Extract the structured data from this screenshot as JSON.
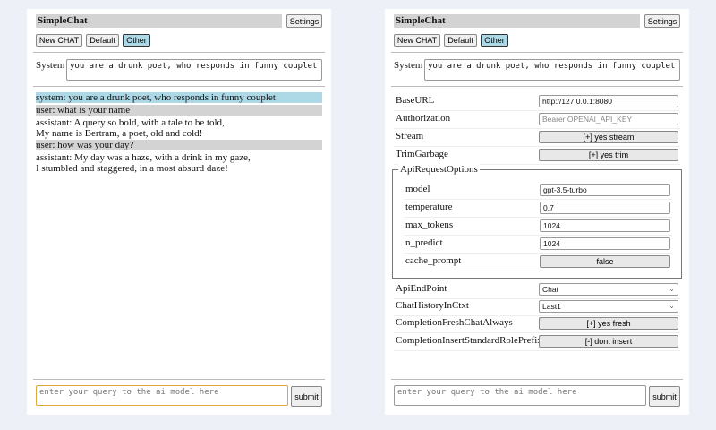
{
  "app": {
    "title": "SimpleChat",
    "settings_label": "Settings",
    "new_chat_label": "New CHAT",
    "default_label": "Default",
    "other_label": "Other",
    "system_label": "System",
    "system_prompt": "you are a drunk poet, who responds in funny couplet",
    "query_placeholder": "enter your query to the ai model here",
    "submit_label": "submit"
  },
  "chat": {
    "messages": [
      {
        "role": "system",
        "text": "system: you are a drunk poet, who responds in funny couplet"
      },
      {
        "role": "user",
        "text": "user: what is your name"
      },
      {
        "role": "assistant",
        "lines": [
          "assistant: A query so bold, with a tale to be told,",
          "My name is Bertram, a poet, old and cold!"
        ]
      },
      {
        "role": "user",
        "text": "user: how was your day?"
      },
      {
        "role": "assistant",
        "lines": [
          "assistant: My day was a haze, with a drink in my gaze,",
          "I stumbled and staggered, in a most absurd daze!"
        ]
      }
    ]
  },
  "settings": {
    "base_url": {
      "label": "BaseURL",
      "value": "http://127.0.0.1:8080"
    },
    "authorization": {
      "label": "Authorization",
      "placeholder": "Bearer OPENAI_API_KEY"
    },
    "stream": {
      "label": "Stream",
      "value": "[+] yes stream"
    },
    "trim_garbage": {
      "label": "TrimGarbage",
      "value": "[+] yes trim"
    },
    "api_request_options": {
      "legend": "ApiRequestOptions",
      "model": {
        "label": "model",
        "value": "gpt-3.5-turbo"
      },
      "temperature": {
        "label": "temperature",
        "value": "0.7"
      },
      "max_tokens": {
        "label": "max_tokens",
        "value": "1024"
      },
      "n_predict": {
        "label": "n_predict",
        "value": "1024"
      },
      "cache_prompt": {
        "label": "cache_prompt",
        "value": "false"
      }
    },
    "api_endpoint": {
      "label": "ApiEndPoint",
      "value": "Chat"
    },
    "chat_history": {
      "label": "ChatHistoryInCtxt",
      "value": "Last1"
    },
    "fresh_chat": {
      "label": "CompletionFreshChatAlways",
      "value": "[+] yes fresh"
    },
    "insert_prefix": {
      "label": "CompletionInsertStandardRolePrefix",
      "value": "[-] dont insert"
    }
  }
}
